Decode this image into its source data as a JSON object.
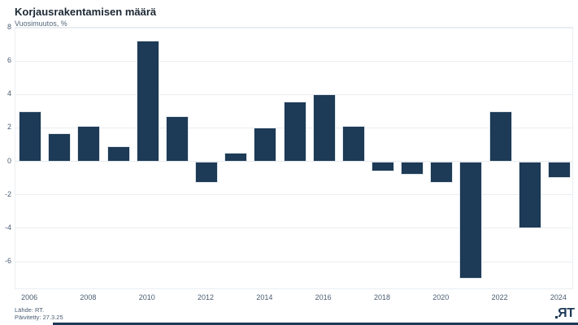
{
  "header": {
    "title": "Korjausrakentamisen määrä",
    "subtitle": "Vuosimuutos, %"
  },
  "footer": {
    "source": "Lähde: RT.",
    "updated": "Päivitetty: 27.3.25",
    "logo": {
      "r": "R",
      "t": "T"
    }
  },
  "colors": {
    "bar": "#1d3a56",
    "title": "#1b2733",
    "axis_label": "#4a5d73",
    "gridline": "#e9edf1",
    "accent_line": "#1d3a56"
  },
  "chart_data": {
    "type": "bar",
    "title": "Korjausrakentamisen määrä",
    "ylabel": "Vuosimuutos, %",
    "xlabel": "",
    "categories": [
      "2006",
      "2007",
      "2008",
      "2009",
      "2010",
      "2011",
      "2012",
      "2013",
      "2014",
      "2015",
      "2016",
      "2017",
      "2018",
      "2019",
      "2020",
      "2021",
      "2022",
      "2023",
      "2024"
    ],
    "values": [
      3.0,
      1.7,
      2.1,
      0.9,
      7.2,
      2.7,
      -1.3,
      0.5,
      2.0,
      3.6,
      4.0,
      2.1,
      -0.6,
      -0.8,
      -1.3,
      -7.0,
      3.0,
      -4.0,
      -1.0
    ],
    "ylim": [
      -7.7,
      8
    ],
    "yticks": [
      8,
      6,
      4,
      2,
      0,
      -2,
      -4,
      -6
    ],
    "xtick_labels": [
      "2006",
      "2008",
      "2010",
      "2012",
      "2014",
      "2016",
      "2018",
      "2020",
      "2022",
      "2024"
    ],
    "grid": true,
    "legend": false
  }
}
